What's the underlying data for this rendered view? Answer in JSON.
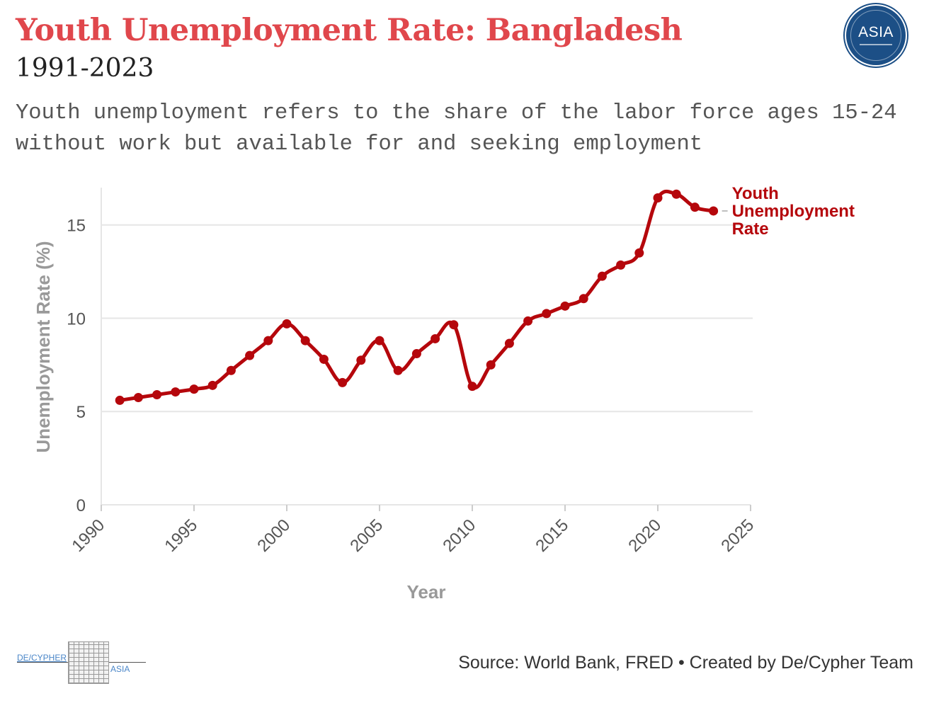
{
  "header": {
    "title": "Youth Unemployment Rate: Bangladesh",
    "subtitle": "1991-2023",
    "description": "Youth unemployment refers to the share of the labor force ages 15-24 without work but available for and seeking employment"
  },
  "badge": {
    "text": "ASIA",
    "icon": "asia-badge-logo"
  },
  "footer": {
    "logo_left": "DE/CYPHER",
    "logo_right": "ASIA",
    "source": "Source: World Bank, FRED • Created by De/Cypher Team"
  },
  "colors": {
    "title": "#e0474c",
    "series": "#b5070c",
    "axis_label": "#999999",
    "grid": "#e6e6e6"
  },
  "chart_data": {
    "type": "line",
    "xlabel": "Year",
    "ylabel": "Unemployment Rate (%)",
    "xlim": [
      1990,
      2025
    ],
    "ylim": [
      0,
      17
    ],
    "xticks": [
      1990,
      1995,
      2000,
      2005,
      2010,
      2015,
      2020,
      2025
    ],
    "yticks": [
      0,
      5,
      10,
      15
    ],
    "grid": true,
    "legend": "end-of-line label",
    "series": [
      {
        "name": "Youth Unemployment Rate",
        "x": [
          1991,
          1992,
          1993,
          1994,
          1995,
          1996,
          1997,
          1998,
          1999,
          2000,
          2001,
          2002,
          2003,
          2004,
          2005,
          2006,
          2007,
          2008,
          2009,
          2010,
          2011,
          2012,
          2013,
          2014,
          2015,
          2016,
          2017,
          2018,
          2019,
          2020,
          2021,
          2022,
          2023
        ],
        "values": [
          5.6,
          5.75,
          5.9,
          6.05,
          6.2,
          6.4,
          7.2,
          8.0,
          8.8,
          9.7,
          8.8,
          7.8,
          6.55,
          7.75,
          8.8,
          7.2,
          8.1,
          8.9,
          9.65,
          6.35,
          7.5,
          8.65,
          9.85,
          10.25,
          10.65,
          11.05,
          12.25,
          12.85,
          13.5,
          16.45,
          16.65,
          15.95,
          15.75
        ]
      }
    ]
  }
}
